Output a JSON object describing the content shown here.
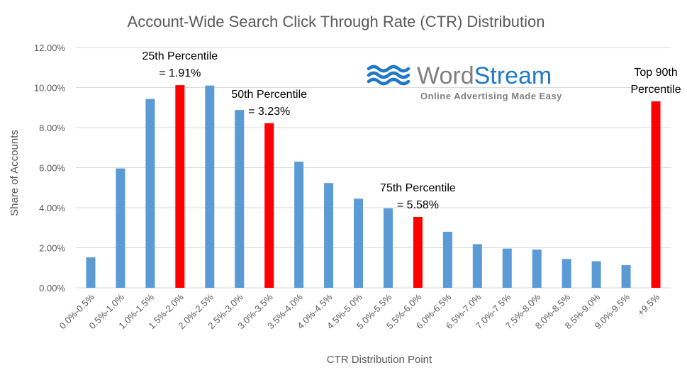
{
  "chart_data": {
    "type": "bar",
    "title": "Account-Wide Search Click Through Rate (CTR) Distribution",
    "xlabel": "CTR Distribution Point",
    "ylabel": "Share of Accounts",
    "ylim": [
      0,
      0.12
    ],
    "yticks": [
      "0.00%",
      "2.00%",
      "4.00%",
      "6.00%",
      "8.00%",
      "10.00%",
      "12.00%"
    ],
    "categories": [
      "0.0%-0.5%",
      "0.5%-1.0%",
      "1.0%-1.5%",
      "1.5%-2.0%",
      "2.0%-2.5%",
      "2.5%-3.0%",
      "3.0%-3.5%",
      "3.5%-4.0%",
      "4.0%-4.5%",
      "4.5%-5.0%",
      "5.0%-5.5%",
      "5.5%-6.0%",
      "6.0%-6.5%",
      "6.5%-7.0%",
      "7.0%-7.5%",
      "7.5%-8.0%",
      "8.0%-8.5%",
      "8.5%-9.0%",
      "9.0%-9.5%",
      "+9.5%"
    ],
    "values": [
      0.0152,
      0.0596,
      0.0943,
      0.1012,
      0.101,
      0.0888,
      0.0822,
      0.063,
      0.0523,
      0.0445,
      0.0397,
      0.0354,
      0.028,
      0.0218,
      0.0196,
      0.0191,
      0.0144,
      0.0133,
      0.0113,
      0.0931
    ],
    "highlighted": [
      3,
      6,
      11,
      19
    ],
    "colors": {
      "normal": "#5B9BD5",
      "highlight": "#FF0000",
      "grid": "#D9D9D9",
      "text": "#595959"
    },
    "grid": true,
    "annotations": [
      {
        "line1": "25th Percentile",
        "line2": "= 1.91%",
        "bar": 3
      },
      {
        "line1": "50th Percentile",
        "line2": "= 3.23%",
        "bar": 6
      },
      {
        "line1": "75th Percentile",
        "line2": "= 5.58%",
        "bar": 11
      },
      {
        "line1": "Top 90th",
        "line2": "Percentile",
        "bar": 19
      }
    ]
  },
  "logo": {
    "word1": "Word",
    "word2": "Stream",
    "tagline": "Online Advertising Made Easy",
    "color1": "#7F7F7F",
    "color2": "#1F78C8"
  }
}
